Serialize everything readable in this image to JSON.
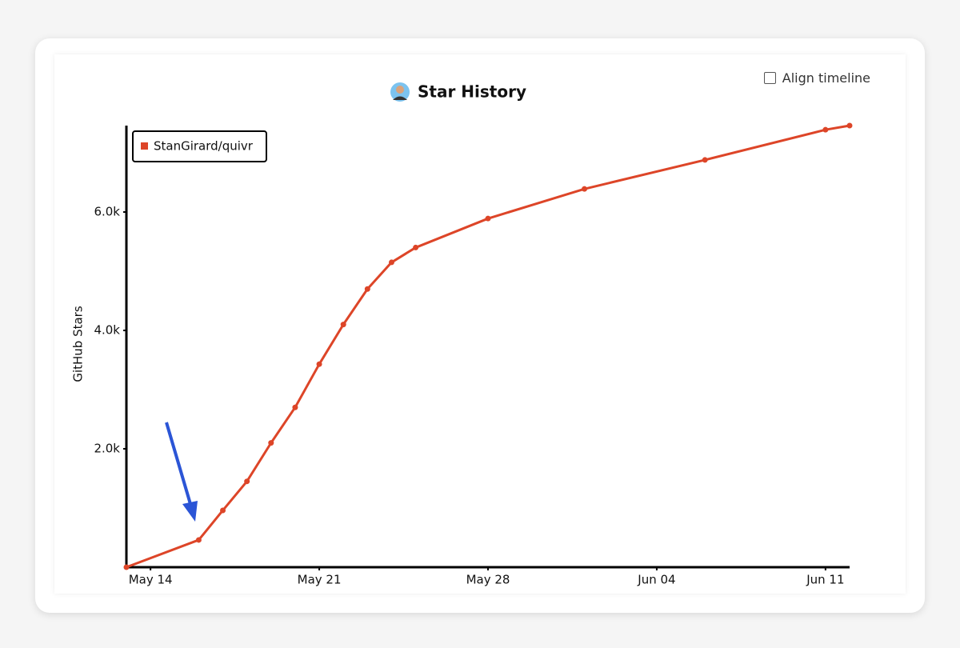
{
  "chart_data": {
    "type": "line",
    "title": "Star History",
    "x_label": null,
    "y_label": "GitHub Stars",
    "align_timeline_label": "Align timeline",
    "x": [
      "May 13",
      "May 16",
      "May 17",
      "May 18",
      "May 19",
      "May 20",
      "May 21",
      "May 22",
      "May 23",
      "May 24",
      "May 25",
      "May 28",
      "Jun 01",
      "Jun 06",
      "Jun 11",
      "Jun 12"
    ],
    "series": [
      {
        "name": "StanGirard/quivr",
        "color": "#dd4528",
        "values": [
          0,
          460,
          960,
          1450,
          2100,
          2700,
          3430,
          4100,
          4700,
          5150,
          5400,
          5890,
          6390,
          6880,
          7390,
          7460
        ]
      }
    ],
    "xlim": [
      "May 13",
      "Jun 12"
    ],
    "xticks": [
      "May 14",
      "May 21",
      "May 28",
      "Jun 04",
      "Jun 11"
    ],
    "ylim": [
      0,
      7460
    ],
    "yticks": [
      {
        "value": 2000,
        "label": "2.0k"
      },
      {
        "value": 4000,
        "label": "4.0k"
      },
      {
        "value": 6000,
        "label": "6.0k"
      }
    ],
    "grid": false,
    "legend": "upper left"
  }
}
